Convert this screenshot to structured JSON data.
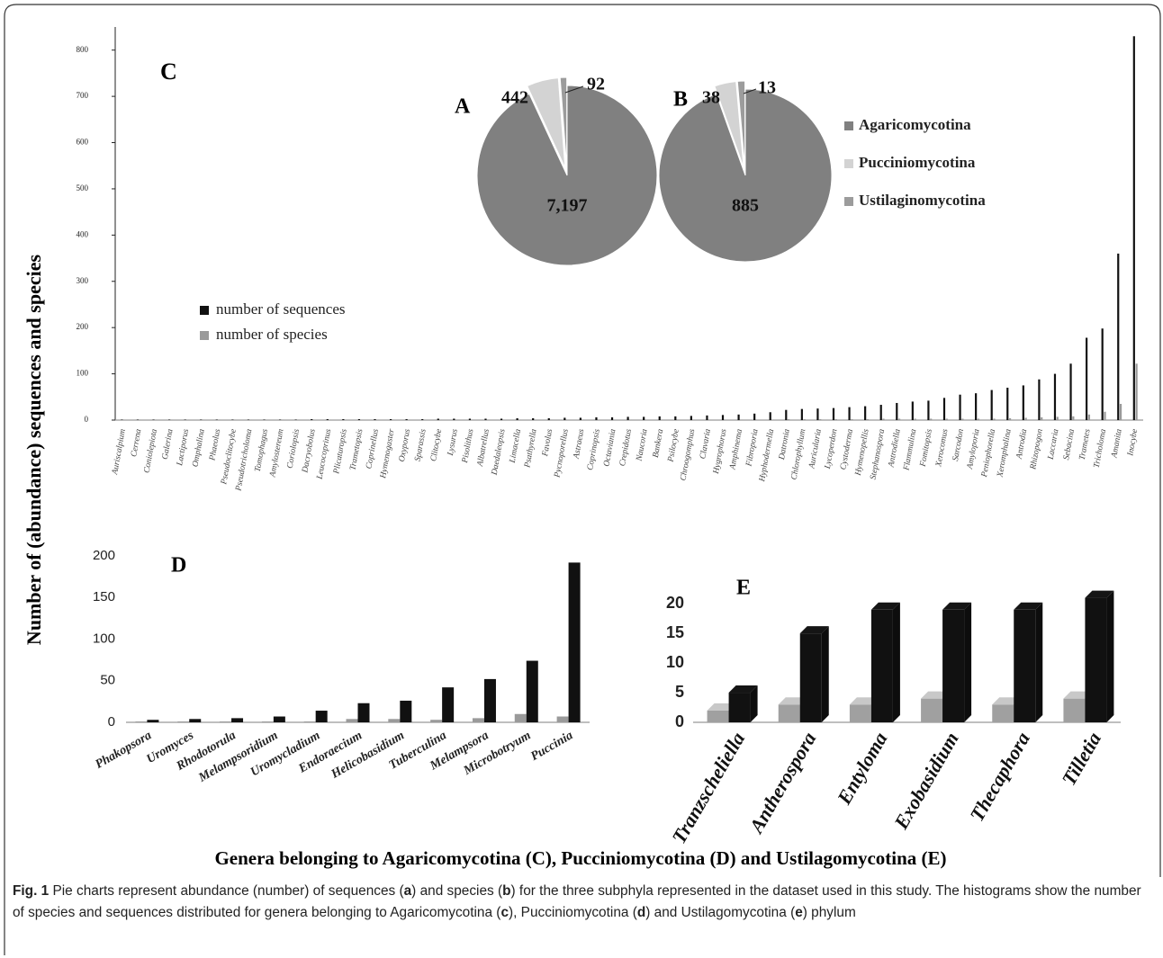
{
  "figure": {
    "y_label": "Number of (abundance) sequences and species",
    "x_label": "Genera belonging to Agaricomycotina (C), Pucciniomycotina (D) and Ustilagomycotina (E)",
    "caption": {
      "label": "Fig. 1",
      "parts": [
        "Pie charts represent abundance (number) of sequences (",
        "a",
        ") and species (",
        "b",
        ") for the three subphyla represented in the dataset used in this study. The histograms show the number of species and sequences distributed for genera belonging to Agaricomycotina (",
        "c",
        "), Pucciniomycotina (",
        "d",
        ") and Ustilagomycotina (",
        "e",
        ") phylum"
      ]
    }
  },
  "chart_data": [
    {
      "type": "bar",
      "label": "C",
      "categories": [
        "Auriscalpium",
        "Cerrena",
        "Coniolepiota",
        "Galerina",
        "Lactiporus",
        "Omphalina",
        "Phaeolus",
        "Pseudoclitocybe",
        "Pseudotricholoma",
        "Tomophagus",
        "Amylostereum",
        "Coriolopsis",
        "Dacryobolus",
        "Leucocoprinus",
        "Plicaturopsis",
        "Trametopsis",
        "Coprinellus",
        "Hymenogaster",
        "Oxyporus",
        "Sparassis",
        "Clitocybe",
        "Lysurus",
        "Pisolithus",
        "Albatrellus",
        "Daedaleopsis",
        "Limacella",
        "Psathyrella",
        "Favolus",
        "Pycnoporellus",
        "Astraeus",
        "Coprinopsis",
        "Octaviania",
        "Crepidotus",
        "Naucoria",
        "Bankera",
        "Psilocybe",
        "Chroogomphus",
        "Clavaria",
        "Hygrophorus",
        "Amphinema",
        "Fibroporia",
        "Hyphodermella",
        "Datronia",
        "Chlorophyllum",
        "Auricularia",
        "Lycoperdon",
        "Cystoderma",
        "Hymenopellis",
        "Stephanospora",
        "Antrodiella",
        "Flammulina",
        "Fomitopsis",
        "Xerocomus",
        "Sarcodon",
        "Amyloporia",
        "Peniophorella",
        "Xeromphalina",
        "Antrodia",
        "Rhizopogon",
        "Laccaria",
        "Sebacina",
        "Trametes",
        "Tricholoma",
        "Amanita",
        "Inocybe"
      ],
      "series": [
        {
          "name": "number of  sequences",
          "color": "#111111",
          "values": [
            1,
            1,
            1,
            1,
            1,
            1,
            1,
            1,
            1,
            1,
            1,
            1,
            2,
            2,
            2,
            2,
            2,
            2,
            2,
            2,
            3,
            3,
            3,
            3,
            3,
            4,
            4,
            4,
            5,
            5,
            6,
            6,
            7,
            7,
            8,
            8,
            9,
            10,
            11,
            12,
            14,
            17,
            22,
            24,
            25,
            26,
            28,
            30,
            33,
            37,
            40,
            42,
            48,
            55,
            58,
            65,
            70,
            75,
            88,
            100,
            122,
            178,
            198,
            360,
            830
          ]
        },
        {
          "name": "number of species",
          "color": "#9a9a9a",
          "values": [
            1,
            1,
            1,
            1,
            1,
            1,
            1,
            1,
            1,
            1,
            1,
            1,
            1,
            1,
            1,
            1,
            1,
            1,
            1,
            1,
            1,
            1,
            1,
            1,
            1,
            1,
            1,
            1,
            1,
            1,
            1,
            1,
            1,
            1,
            1,
            1,
            1,
            1,
            1,
            1,
            1,
            1,
            2,
            2,
            2,
            2,
            2,
            2,
            3,
            3,
            3,
            3,
            3,
            3,
            3,
            3,
            4,
            5,
            6,
            7,
            8,
            12,
            18,
            35,
            122
          ]
        }
      ],
      "ylim": [
        0,
        850
      ],
      "yticks": [
        0,
        100,
        200,
        300,
        400,
        500,
        600,
        700,
        800
      ]
    },
    {
      "type": "pie",
      "label": "A",
      "categories": [
        "Agaricomycotina",
        "Pucciniomycotina",
        "Ustilaginomycotina"
      ],
      "values": [
        7197,
        442,
        92
      ],
      "value_labels": [
        "7,197",
        "442",
        "92"
      ],
      "colors": [
        "#808080",
        "#d3d3d3",
        "#9c9c9c"
      ]
    },
    {
      "type": "pie",
      "label": "B",
      "values": [
        885,
        38,
        13
      ],
      "value_labels": [
        "885",
        "38",
        "13"
      ],
      "colors": [
        "#808080",
        "#d3d3d3",
        "#9c9c9c"
      ]
    },
    {
      "type": "bar",
      "label": "D",
      "categories": [
        "Phakopsora",
        "Uromyces",
        "Rhodotorula",
        "Melampsoridium",
        "Uromycladium",
        "Endoraecium",
        "Helicobasidium",
        "Tuberculina",
        "Melampsora",
        "Microbotryum",
        "Puccinia"
      ],
      "series": [
        {
          "color": "#9a9a9a",
          "values": [
            1,
            1,
            1,
            1,
            1,
            4,
            4,
            3,
            5,
            10,
            7
          ]
        },
        {
          "color": "#111111",
          "values": [
            3,
            4,
            5,
            7,
            14,
            23,
            26,
            42,
            52,
            74,
            192
          ]
        }
      ],
      "ylim": [
        0,
        200
      ],
      "yticks": [
        0,
        50,
        100,
        150,
        200
      ]
    },
    {
      "type": "bar",
      "style": "3d",
      "label": "E",
      "categories": [
        "Tranzscheliella",
        "Antherospora",
        "Entyloma",
        "Exobasidium",
        "Thecaphora",
        "Tilletia"
      ],
      "series": [
        {
          "color": "#a0a0a0",
          "values": [
            2,
            3,
            3,
            4,
            3,
            4
          ]
        },
        {
          "color": "#111111",
          "values": [
            5,
            15,
            19,
            19,
            19,
            21
          ]
        }
      ],
      "ylim": [
        0,
        22
      ],
      "yticks": [
        0,
        5,
        10,
        15,
        20
      ]
    }
  ]
}
